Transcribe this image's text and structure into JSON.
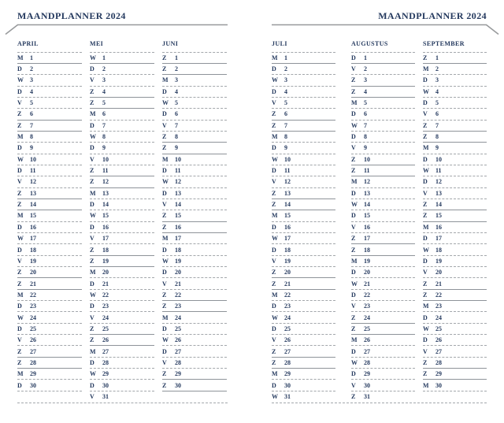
{
  "colors": {
    "text_navy": "#24395e",
    "dashed_line_gray": "#a3a7ab",
    "solid_line_gray": "#8e9399",
    "header_rule_gray": "#97999b",
    "background": "#ffffff"
  },
  "pages": [
    {
      "side": "left",
      "title": "MAANDPLANNER 2024",
      "months": [
        {
          "name": "APRIL",
          "days": [
            [
              "M",
              1
            ],
            [
              "D",
              2
            ],
            [
              "W",
              3
            ],
            [
              "D",
              4
            ],
            [
              "V",
              5
            ],
            [
              "Z",
              6
            ],
            [
              "Z",
              7
            ],
            [
              "M",
              8
            ],
            [
              "D",
              9
            ],
            [
              "W",
              10
            ],
            [
              "D",
              11
            ],
            [
              "V",
              12
            ],
            [
              "Z",
              13
            ],
            [
              "Z",
              14
            ],
            [
              "M",
              15
            ],
            [
              "D",
              16
            ],
            [
              "W",
              17
            ],
            [
              "D",
              18
            ],
            [
              "V",
              19
            ],
            [
              "Z",
              20
            ],
            [
              "Z",
              21
            ],
            [
              "M",
              22
            ],
            [
              "D",
              23
            ],
            [
              "W",
              24
            ],
            [
              "D",
              25
            ],
            [
              "V",
              26
            ],
            [
              "Z",
              27
            ],
            [
              "Z",
              28
            ],
            [
              "M",
              29
            ],
            [
              "D",
              30
            ]
          ]
        },
        {
          "name": "MEI",
          "days": [
            [
              "W",
              1
            ],
            [
              "D",
              2
            ],
            [
              "V",
              3
            ],
            [
              "Z",
              4
            ],
            [
              "Z",
              5
            ],
            [
              "M",
              6
            ],
            [
              "D",
              7
            ],
            [
              "W",
              8
            ],
            [
              "D",
              9
            ],
            [
              "V",
              10
            ],
            [
              "Z",
              11
            ],
            [
              "Z",
              12
            ],
            [
              "M",
              13
            ],
            [
              "D",
              14
            ],
            [
              "W",
              15
            ],
            [
              "D",
              16
            ],
            [
              "V",
              17
            ],
            [
              "Z",
              18
            ],
            [
              "Z",
              19
            ],
            [
              "M",
              20
            ],
            [
              "D",
              21
            ],
            [
              "W",
              22
            ],
            [
              "D",
              23
            ],
            [
              "V",
              24
            ],
            [
              "Z",
              25
            ],
            [
              "Z",
              26
            ],
            [
              "M",
              27
            ],
            [
              "D",
              28
            ],
            [
              "W",
              29
            ],
            [
              "D",
              30
            ],
            [
              "V",
              31
            ]
          ]
        },
        {
          "name": "JUNI",
          "days": [
            [
              "Z",
              1
            ],
            [
              "Z",
              2
            ],
            [
              "M",
              3
            ],
            [
              "D",
              4
            ],
            [
              "W",
              5
            ],
            [
              "D",
              6
            ],
            [
              "V",
              7
            ],
            [
              "Z",
              8
            ],
            [
              "Z",
              9
            ],
            [
              "M",
              10
            ],
            [
              "D",
              11
            ],
            [
              "W",
              12
            ],
            [
              "D",
              13
            ],
            [
              "V",
              14
            ],
            [
              "Z",
              15
            ],
            [
              "Z",
              16
            ],
            [
              "M",
              17
            ],
            [
              "D",
              18
            ],
            [
              "W",
              19
            ],
            [
              "D",
              20
            ],
            [
              "V",
              21
            ],
            [
              "Z",
              22
            ],
            [
              "Z",
              23
            ],
            [
              "M",
              24
            ],
            [
              "D",
              25
            ],
            [
              "W",
              26
            ],
            [
              "D",
              27
            ],
            [
              "V",
              28
            ],
            [
              "Z",
              29
            ],
            [
              "Z",
              30
            ]
          ]
        }
      ]
    },
    {
      "side": "right",
      "title": "MAANDPLANNER 2024",
      "months": [
        {
          "name": "JULI",
          "days": [
            [
              "M",
              1
            ],
            [
              "D",
              2
            ],
            [
              "W",
              3
            ],
            [
              "D",
              4
            ],
            [
              "V",
              5
            ],
            [
              "Z",
              6
            ],
            [
              "Z",
              7
            ],
            [
              "M",
              8
            ],
            [
              "D",
              9
            ],
            [
              "W",
              10
            ],
            [
              "D",
              11
            ],
            [
              "V",
              12
            ],
            [
              "Z",
              13
            ],
            [
              "Z",
              14
            ],
            [
              "M",
              15
            ],
            [
              "D",
              16
            ],
            [
              "W",
              17
            ],
            [
              "D",
              18
            ],
            [
              "V",
              19
            ],
            [
              "Z",
              20
            ],
            [
              "Z",
              21
            ],
            [
              "M",
              22
            ],
            [
              "D",
              23
            ],
            [
              "W",
              24
            ],
            [
              "D",
              25
            ],
            [
              "V",
              26
            ],
            [
              "Z",
              27
            ],
            [
              "Z",
              28
            ],
            [
              "M",
              29
            ],
            [
              "D",
              30
            ],
            [
              "W",
              31
            ]
          ]
        },
        {
          "name": "AUGUSTUS",
          "days": [
            [
              "D",
              1
            ],
            [
              "V",
              2
            ],
            [
              "Z",
              3
            ],
            [
              "Z",
              4
            ],
            [
              "M",
              5
            ],
            [
              "D",
              6
            ],
            [
              "W",
              7
            ],
            [
              "D",
              8
            ],
            [
              "V",
              9
            ],
            [
              "Z",
              10
            ],
            [
              "Z",
              11
            ],
            [
              "M",
              12
            ],
            [
              "D",
              13
            ],
            [
              "W",
              14
            ],
            [
              "D",
              15
            ],
            [
              "V",
              16
            ],
            [
              "Z",
              17
            ],
            [
              "Z",
              18
            ],
            [
              "M",
              19
            ],
            [
              "D",
              20
            ],
            [
              "W",
              21
            ],
            [
              "D",
              22
            ],
            [
              "V",
              23
            ],
            [
              "Z",
              24
            ],
            [
              "Z",
              25
            ],
            [
              "M",
              26
            ],
            [
              "D",
              27
            ],
            [
              "W",
              28
            ],
            [
              "D",
              29
            ],
            [
              "V",
              30
            ],
            [
              "Z",
              31
            ]
          ]
        },
        {
          "name": "SEPTEMBER",
          "days": [
            [
              "Z",
              1
            ],
            [
              "M",
              2
            ],
            [
              "D",
              3
            ],
            [
              "W",
              4
            ],
            [
              "D",
              5
            ],
            [
              "V",
              6
            ],
            [
              "Z",
              7
            ],
            [
              "Z",
              8
            ],
            [
              "M",
              9
            ],
            [
              "D",
              10
            ],
            [
              "W",
              11
            ],
            [
              "D",
              12
            ],
            [
              "V",
              13
            ],
            [
              "Z",
              14
            ],
            [
              "Z",
              15
            ],
            [
              "M",
              16
            ],
            [
              "D",
              17
            ],
            [
              "W",
              18
            ],
            [
              "D",
              19
            ],
            [
              "V",
              20
            ],
            [
              "Z",
              21
            ],
            [
              "Z",
              22
            ],
            [
              "M",
              23
            ],
            [
              "D",
              24
            ],
            [
              "W",
              25
            ],
            [
              "D",
              26
            ],
            [
              "V",
              27
            ],
            [
              "Z",
              28
            ],
            [
              "Z",
              29
            ],
            [
              "M",
              30
            ]
          ]
        }
      ]
    }
  ]
}
